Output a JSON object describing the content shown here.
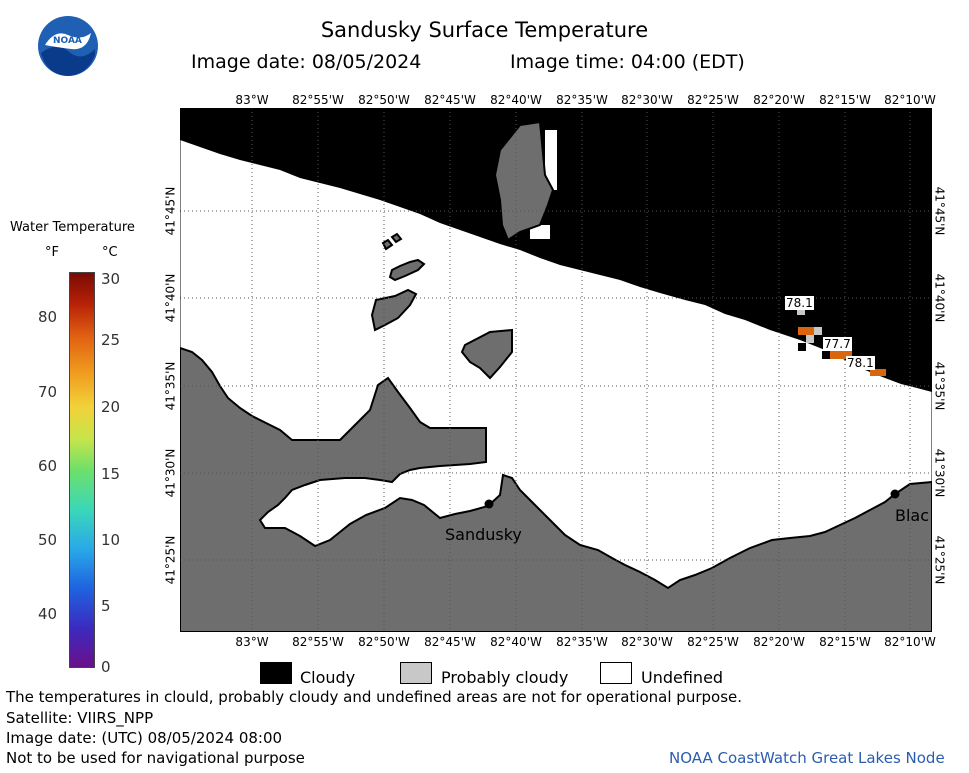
{
  "header": {
    "title": "Sandusky Surface Temperature",
    "image_date": "Image date: 08/05/2024",
    "image_time": "Image time: 04:00 (EDT)"
  },
  "logo": {
    "text": "NOAA",
    "icon": "noaa-logo-icon"
  },
  "map": {
    "lon_labels": [
      "83°W",
      "82°55'W",
      "82°50'W",
      "82°45'W",
      "82°40'W",
      "82°35'W",
      "82°30'W",
      "82°25'W",
      "82°20'W",
      "82°15'W",
      "82°10'W"
    ],
    "lat_labels": [
      "41°45'N",
      "41°40'N",
      "41°35'N",
      "41°30'N",
      "41°25'N"
    ],
    "places": {
      "sandusky": "Sandusky",
      "east_town": "Blac"
    },
    "temperature_labels": [
      "78.1",
      "77.7",
      "78.1"
    ],
    "colors": {
      "cloudy": "#000000",
      "probably_cloudy": "#c8c8c8",
      "land": "#6e6e6e",
      "undefined": "#ffffff",
      "warm_pixel": "#d9660f"
    }
  },
  "colorbar": {
    "title": "Water Temperature",
    "unit_f": "°F",
    "unit_c": "°C",
    "f_ticks": [
      "80",
      "70",
      "60",
      "50",
      "40"
    ],
    "c_ticks": [
      "30",
      "25",
      "20",
      "15",
      "10",
      "5",
      "0"
    ]
  },
  "legend": {
    "cloudy": "Cloudy",
    "probably_cloudy": "Probably cloudy",
    "undefined": "Undefined"
  },
  "footer": {
    "disclaimer": "The temperatures in clould, probably cloudy and undefined areas are not for operational purpose.",
    "satellite": "Satellite: VIIRS_NPP",
    "utc_date": "Image date: (UTC) 08/05/2024  08:00",
    "nav_warning": "Not to be used for navigational purpose",
    "credit": "NOAA CoastWatch Great Lakes Node"
  }
}
